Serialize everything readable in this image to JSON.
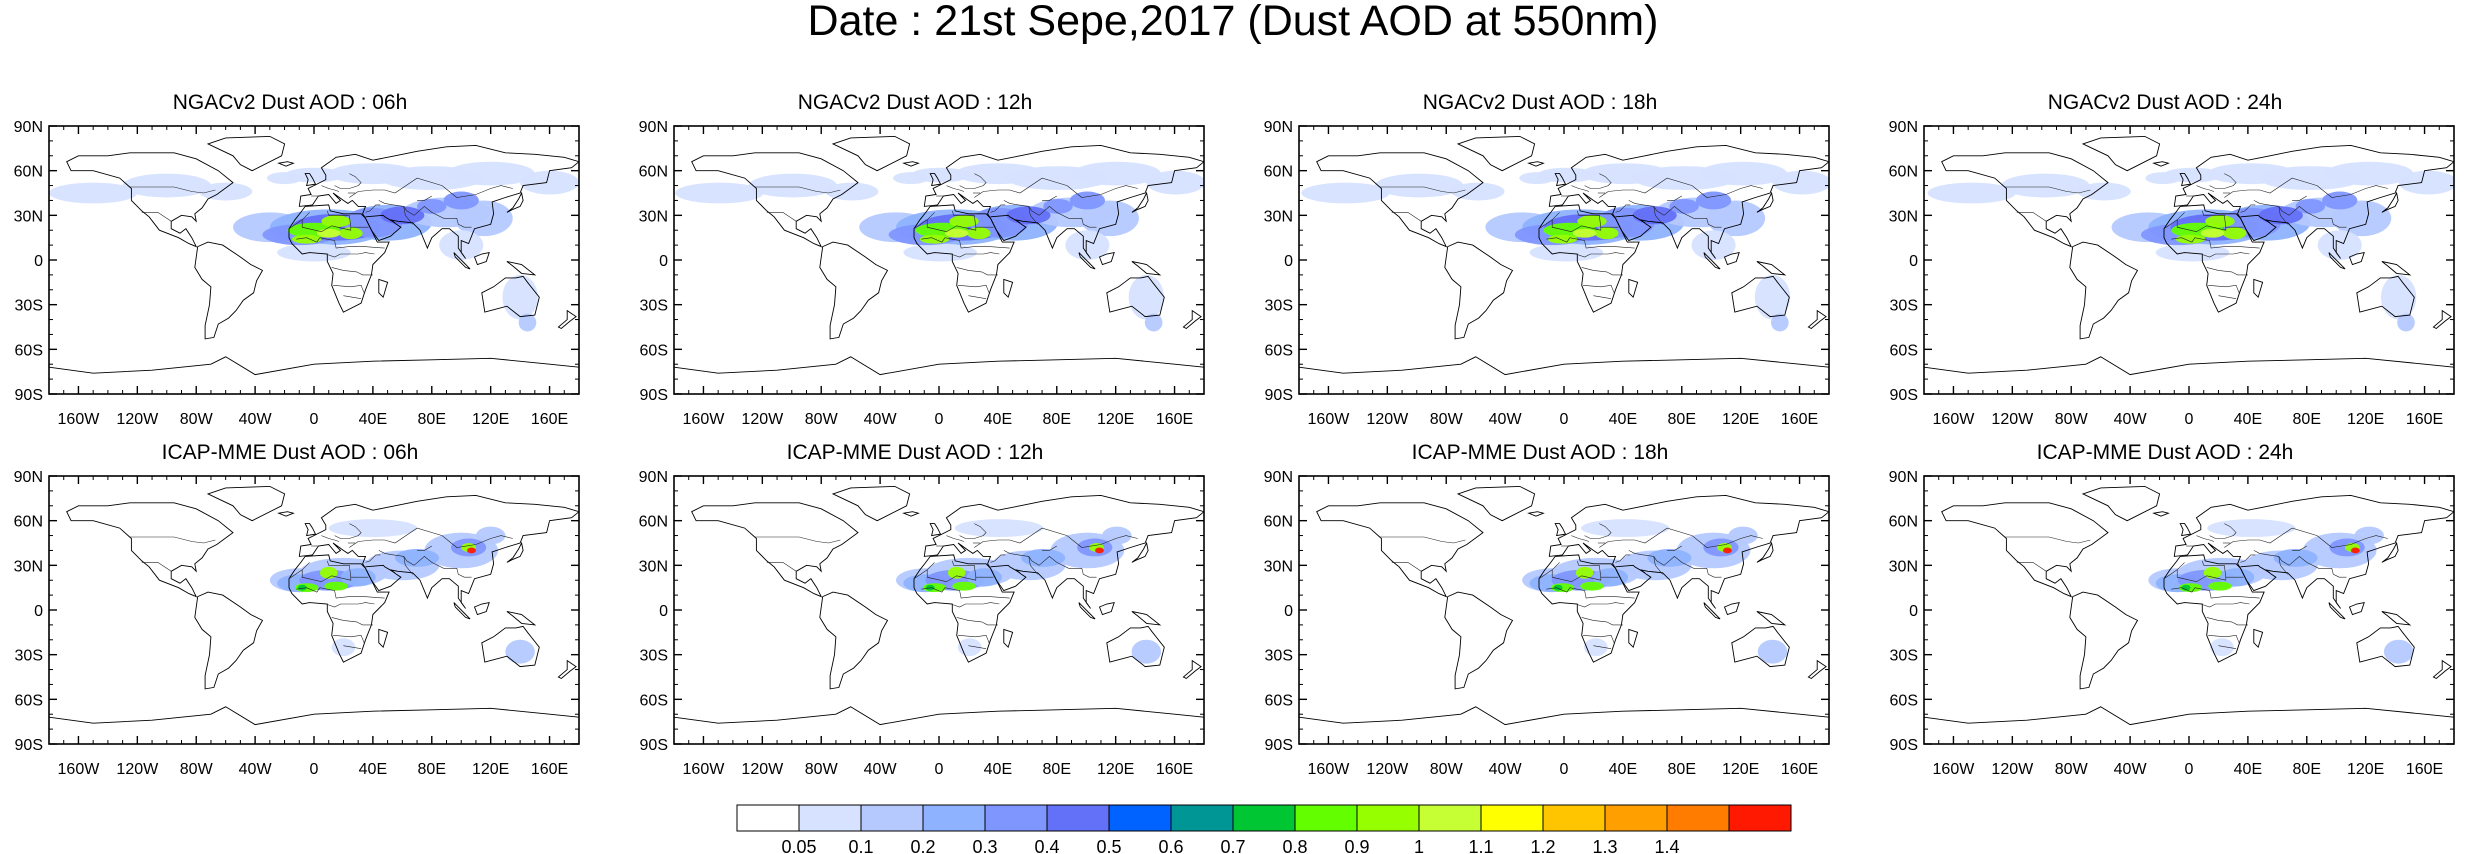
{
  "title": "Date : 21st Sepe,2017 (Dust AOD at 550nm)",
  "panels": [
    {
      "title": "NGACv2 Dust AOD : 06h",
      "model": "NGACv2",
      "hour": "06h"
    },
    {
      "title": "NGACv2 Dust AOD : 12h",
      "model": "NGACv2",
      "hour": "12h"
    },
    {
      "title": "NGACv2 Dust AOD : 18h",
      "model": "NGACv2",
      "hour": "18h"
    },
    {
      "title": "NGACv2 Dust AOD : 24h",
      "model": "NGACv2",
      "hour": "24h"
    },
    {
      "title": "ICAP-MME Dust AOD : 06h",
      "model": "ICAP-MME",
      "hour": "06h"
    },
    {
      "title": "ICAP-MME Dust AOD : 12h",
      "model": "ICAP-MME",
      "hour": "12h"
    },
    {
      "title": "ICAP-MME Dust AOD : 18h",
      "model": "ICAP-MME",
      "hour": "18h"
    },
    {
      "title": "ICAP-MME Dust AOD : 24h",
      "model": "ICAP-MME",
      "hour": "24h"
    }
  ],
  "axes": {
    "lat_labels": [
      "90N",
      "60N",
      "30N",
      "0",
      "30S",
      "60S",
      "90S"
    ],
    "lon_labels": [
      "160W",
      "120W",
      "80W",
      "40W",
      "0",
      "40E",
      "80E",
      "120E",
      "160E"
    ]
  },
  "colorbar": {
    "labels": [
      "0.05",
      "0.1",
      "0.2",
      "0.3",
      "0.4",
      "0.5",
      "0.6",
      "0.7",
      "0.8",
      "0.9",
      "1",
      "1.1",
      "1.2",
      "1.3",
      "1.4"
    ],
    "colors": [
      "#ffffff",
      "#d6e2ff",
      "#b5c9ff",
      "#8eb2ff",
      "#7f96ff",
      "#6370f8",
      "#0063ff",
      "#009696",
      "#00c633",
      "#63ff00",
      "#96ff00",
      "#c6ff33",
      "#ffff00",
      "#ffc600",
      "#ffa000",
      "#ff7c00",
      "#ff1900"
    ]
  }
}
